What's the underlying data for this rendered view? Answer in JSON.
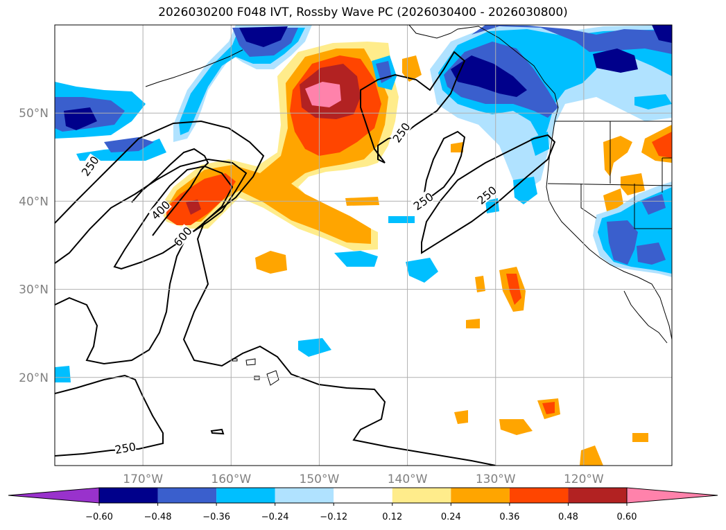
{
  "title": "2026030200 F048 IVT, Rossby Wave PC (2026030400 - 2026030800)",
  "map": {
    "lon_range": [
      -180,
      -110
    ],
    "lat_range": [
      10,
      60
    ],
    "lon_ticks": [
      {
        "value": -170,
        "label": "170°W"
      },
      {
        "value": -160,
        "label": "160°W"
      },
      {
        "value": -150,
        "label": "150°W"
      },
      {
        "value": -140,
        "label": "140°W"
      },
      {
        "value": -130,
        "label": "130°W"
      },
      {
        "value": -120,
        "label": "120°W"
      }
    ],
    "lat_ticks": [
      {
        "value": 20,
        "label": "20°N"
      },
      {
        "value": 30,
        "label": "30°N"
      },
      {
        "value": 40,
        "label": "40°N"
      },
      {
        "value": 50,
        "label": "50°N"
      }
    ],
    "grid": true,
    "contour_labels": [
      {
        "text": "250",
        "lon": -176,
        "lat": 44
      },
      {
        "text": "400",
        "lon": -168,
        "lat": 39
      },
      {
        "text": "600",
        "lon": -165.5,
        "lat": 36
      },
      {
        "text": "250",
        "lon": -140.7,
        "lat": 47.8
      },
      {
        "text": "250",
        "lon": -138.2,
        "lat": 40
      },
      {
        "text": "250",
        "lon": -131,
        "lat": 40.7
      },
      {
        "text": "250",
        "lon": -172,
        "lat": 12
      }
    ]
  },
  "colorbar": {
    "extend": "both",
    "levels": [
      -0.6,
      -0.48,
      -0.36,
      -0.24,
      -0.12,
      0.12,
      0.24,
      0.36,
      0.48,
      0.6
    ],
    "tick_labels": [
      "−0.60",
      "−0.48",
      "−0.36",
      "−0.24",
      "−0.12",
      "0.12",
      "0.24",
      "0.36",
      "0.48",
      "0.60"
    ],
    "colors": [
      "#9932cc",
      "#00008b",
      "#3a5fcd",
      "#00bfff",
      "#b0e2ff",
      "#ffffff",
      "#ffec8b",
      "#ffa500",
      "#ff4500",
      "#b22222",
      "#ff82ab"
    ]
  }
}
